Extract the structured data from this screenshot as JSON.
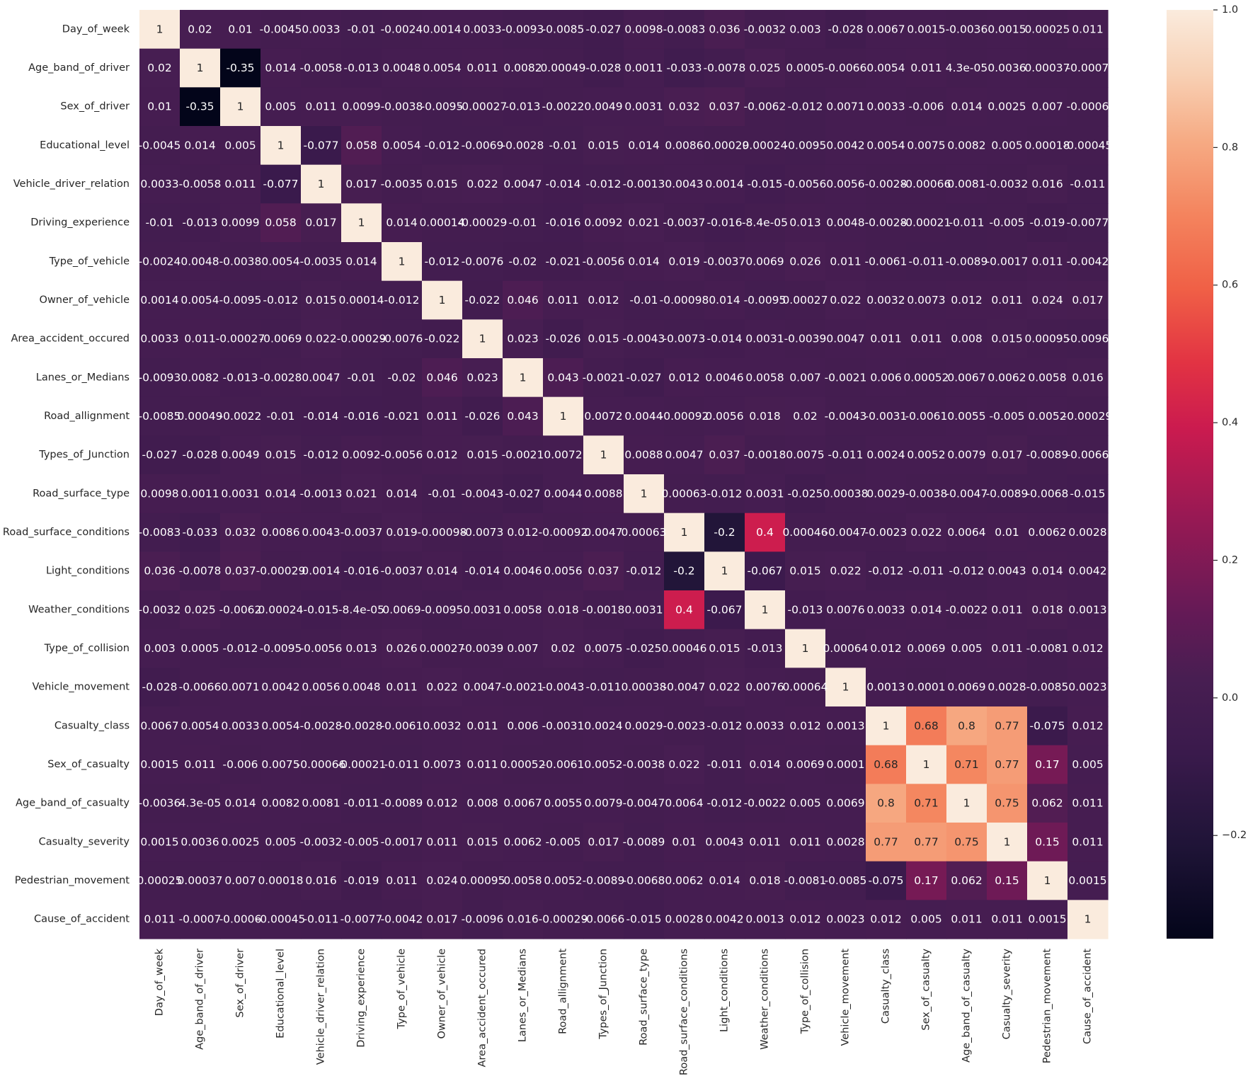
{
  "chart_data": {
    "type": "heatmap",
    "title": "",
    "xlabel": "",
    "ylabel": "",
    "labels": [
      "Day_of_week",
      "Age_band_of_driver",
      "Sex_of_driver",
      "Educational_level",
      "Vehicle_driver_relation",
      "Driving_experience",
      "Type_of_vehicle",
      "Owner_of_vehicle",
      "Area_accident_occured",
      "Lanes_or_Medians",
      "Road_allignment",
      "Types_of_Junction",
      "Road_surface_type",
      "Road_surface_conditions",
      "Light_conditions",
      "Weather_conditions",
      "Type_of_collision",
      "Vehicle_movement",
      "Casualty_class",
      "Sex_of_casualty",
      "Age_band_of_casualty",
      "Casualty_severity",
      "Pedestrian_movement",
      "Cause_of_accident"
    ],
    "annotations": [
      [
        "1",
        "0.02",
        "0.01",
        "-0.0045",
        "0.0033",
        "-0.01",
        "-0.0024",
        "0.0014",
        "0.0033",
        "-0.0093",
        "-0.0085",
        "-0.027",
        "0.0098",
        "-0.0083",
        "0.036",
        "-0.0032",
        "0.003",
        "-0.028",
        "0.0067",
        "0.0015",
        "-0.0036",
        "0.0015",
        "0.00025",
        "0.011"
      ],
      [
        "0.02",
        "1",
        "-0.35",
        "0.014",
        "-0.0058",
        "-0.013",
        "0.0048",
        "0.0054",
        "0.011",
        "0.0082",
        "0.00049",
        "-0.028",
        "0.0011",
        "-0.033",
        "-0.0078",
        "0.025",
        "0.0005",
        "-0.0066",
        "0.0054",
        "0.011",
        "4.3e-05",
        "0.0036",
        "0.00037",
        "-0.0007"
      ],
      [
        "0.01",
        "-0.35",
        "1",
        "0.005",
        "0.011",
        "0.0099",
        "-0.0038",
        "-0.0095",
        "-0.00027",
        "-0.013",
        "-0.0022",
        "0.0049",
        "0.0031",
        "0.032",
        "0.037",
        "-0.0062",
        "-0.012",
        "0.0071",
        "0.0033",
        "-0.006",
        "0.014",
        "0.0025",
        "0.007",
        "-0.0006"
      ],
      [
        "-0.0045",
        "0.014",
        "0.005",
        "1",
        "-0.077",
        "0.058",
        "0.0054",
        "-0.012",
        "-0.0069",
        "-0.0028",
        "-0.01",
        "0.015",
        "0.014",
        "0.0086",
        "-0.00029",
        "0.00024",
        "-0.0095",
        "0.0042",
        "0.0054",
        "0.0075",
        "0.0082",
        "0.005",
        "0.00018",
        "-0.00045"
      ],
      [
        "0.0033",
        "-0.0058",
        "0.011",
        "-0.077",
        "1",
        "0.017",
        "-0.0035",
        "0.015",
        "0.022",
        "0.0047",
        "-0.014",
        "-0.012",
        "-0.0013",
        "0.0043",
        "0.0014",
        "-0.015",
        "-0.0056",
        "0.0056",
        "-0.0028",
        "-0.00066",
        "0.0081",
        "-0.0032",
        "0.016",
        "-0.011"
      ],
      [
        "-0.01",
        "-0.013",
        "0.0099",
        "0.058",
        "0.017",
        "1",
        "0.014",
        "0.00014",
        "-0.00029",
        "-0.01",
        "-0.016",
        "0.0092",
        "0.021",
        "-0.0037",
        "-0.016",
        "-8.4e-05",
        "0.013",
        "0.0048",
        "-0.0028",
        "-0.00021",
        "-0.011",
        "-0.005",
        "-0.019",
        "-0.0077"
      ],
      [
        "-0.0024",
        "0.0048",
        "-0.0038",
        "0.0054",
        "-0.0035",
        "0.014",
        "1",
        "-0.012",
        "-0.0076",
        "-0.02",
        "-0.021",
        "-0.0056",
        "0.014",
        "0.019",
        "-0.0037",
        "0.0069",
        "0.026",
        "0.011",
        "-0.0061",
        "-0.011",
        "-0.0089",
        "-0.0017",
        "0.011",
        "-0.0042"
      ],
      [
        "0.0014",
        "0.0054",
        "-0.0095",
        "-0.012",
        "0.015",
        "0.00014",
        "-0.012",
        "1",
        "-0.022",
        "0.046",
        "0.011",
        "0.012",
        "-0.01",
        "-0.00098",
        "0.014",
        "-0.0095",
        "0.00027",
        "0.022",
        "0.0032",
        "0.0073",
        "0.012",
        "0.011",
        "0.024",
        "0.017"
      ],
      [
        "0.0033",
        "0.011",
        "-0.00027",
        "-0.0069",
        "0.022",
        "-0.00029",
        "-0.0076",
        "-0.022",
        "1",
        "0.023",
        "-0.026",
        "0.015",
        "-0.0043",
        "-0.0073",
        "-0.014",
        "0.0031",
        "-0.0039",
        "0.0047",
        "0.011",
        "0.011",
        "0.008",
        "0.015",
        "0.00095",
        "-0.0096"
      ],
      [
        "-0.0093",
        "0.0082",
        "-0.013",
        "-0.0028",
        "0.0047",
        "-0.01",
        "-0.02",
        "0.046",
        "0.023",
        "1",
        "0.043",
        "-0.0021",
        "-0.027",
        "0.012",
        "0.0046",
        "0.0058",
        "0.007",
        "-0.0021",
        "0.006",
        "0.00052",
        "0.0067",
        "0.0062",
        "0.0058",
        "0.016"
      ],
      [
        "-0.0085",
        "0.00049",
        "-0.0022",
        "-0.01",
        "-0.014",
        "-0.016",
        "-0.021",
        "0.011",
        "-0.026",
        "0.043",
        "1",
        "0.0072",
        "0.0044",
        "-0.00092",
        "0.0056",
        "0.018",
        "0.02",
        "-0.0043",
        "-0.0031",
        "-0.0061",
        "0.0055",
        "-0.005",
        "0.0052",
        "-0.00029"
      ],
      [
        "-0.027",
        "-0.028",
        "0.0049",
        "0.015",
        "-0.012",
        "0.0092",
        "-0.0056",
        "0.012",
        "0.015",
        "-0.0021",
        "0.0072",
        "1",
        "0.0088",
        "0.0047",
        "0.037",
        "-0.0018",
        "0.0075",
        "-0.011",
        "0.0024",
        "0.0052",
        "0.0079",
        "0.017",
        "-0.0089",
        "-0.0066"
      ],
      [
        "0.0098",
        "0.0011",
        "0.0031",
        "0.014",
        "-0.0013",
        "0.021",
        "0.014",
        "-0.01",
        "-0.0043",
        "-0.027",
        "0.0044",
        "0.0088",
        "1",
        "0.00063",
        "-0.012",
        "0.0031",
        "-0.025",
        "0.00038",
        "0.0029",
        "-0.0038",
        "-0.0047",
        "-0.0089",
        "-0.0068",
        "-0.015"
      ],
      [
        "-0.0083",
        "-0.033",
        "0.032",
        "0.0086",
        "0.0043",
        "-0.0037",
        "0.019",
        "-0.00098",
        "-0.0073",
        "0.012",
        "-0.00092",
        "0.0047",
        "0.00063",
        "1",
        "-0.2",
        "0.4",
        "0.00046",
        "-0.0047",
        "-0.0023",
        "0.022",
        "0.0064",
        "0.01",
        "0.0062",
        "0.0028"
      ],
      [
        "0.036",
        "-0.0078",
        "0.037",
        "-0.00029",
        "0.0014",
        "-0.016",
        "-0.0037",
        "0.014",
        "-0.014",
        "0.0046",
        "0.0056",
        "0.037",
        "-0.012",
        "-0.2",
        "1",
        "-0.067",
        "0.015",
        "0.022",
        "-0.012",
        "-0.011",
        "-0.012",
        "0.0043",
        "0.014",
        "0.0042"
      ],
      [
        "-0.0032",
        "0.025",
        "-0.0062",
        "0.00024",
        "-0.015",
        "-8.4e-05",
        "0.0069",
        "-0.0095",
        "0.0031",
        "0.0058",
        "0.018",
        "-0.0018",
        "0.0031",
        "0.4",
        "-0.067",
        "1",
        "-0.013",
        "0.0076",
        "0.0033",
        "0.014",
        "-0.0022",
        "0.011",
        "0.018",
        "0.0013"
      ],
      [
        "0.003",
        "0.0005",
        "-0.012",
        "-0.0095",
        "-0.0056",
        "0.013",
        "0.026",
        "0.00027",
        "-0.0039",
        "0.007",
        "0.02",
        "0.0075",
        "-0.025",
        "0.00046",
        "0.015",
        "-0.013",
        "1",
        "0.00064",
        "0.012",
        "0.0069",
        "0.005",
        "0.011",
        "-0.0081",
        "0.012"
      ],
      [
        "-0.028",
        "-0.0066",
        "0.0071",
        "0.0042",
        "0.0056",
        "0.0048",
        "0.011",
        "0.022",
        "0.0047",
        "-0.0021",
        "-0.0043",
        "-0.011",
        "0.00038",
        "-0.0047",
        "0.022",
        "0.0076",
        "0.00064",
        "1",
        "0.0013",
        "0.0001",
        "0.0069",
        "0.0028",
        "-0.0085",
        "0.0023"
      ],
      [
        "0.0067",
        "0.0054",
        "0.0033",
        "0.0054",
        "-0.0028",
        "-0.0028",
        "-0.0061",
        "0.0032",
        "0.011",
        "0.006",
        "-0.0031",
        "0.0024",
        "0.0029",
        "-0.0023",
        "-0.012",
        "0.0033",
        "0.012",
        "0.0013",
        "1",
        "0.68",
        "0.8",
        "0.77",
        "-0.075",
        "0.012"
      ],
      [
        "0.0015",
        "0.011",
        "-0.006",
        "0.0075",
        "-0.00066",
        "-0.00021",
        "-0.011",
        "0.0073",
        "0.011",
        "0.00052",
        "-0.0061",
        "0.0052",
        "-0.0038",
        "0.022",
        "-0.011",
        "0.014",
        "0.0069",
        "0.0001",
        "0.68",
        "1",
        "0.71",
        "0.77",
        "0.17",
        "0.005"
      ],
      [
        "-0.0036",
        "4.3e-05",
        "0.014",
        "0.0082",
        "0.0081",
        "-0.011",
        "-0.0089",
        "0.012",
        "0.008",
        "0.0067",
        "0.0055",
        "0.0079",
        "-0.0047",
        "0.0064",
        "-0.012",
        "-0.0022",
        "0.005",
        "0.0069",
        "0.8",
        "0.71",
        "1",
        "0.75",
        "0.062",
        "0.011"
      ],
      [
        "0.0015",
        "0.0036",
        "0.0025",
        "0.005",
        "-0.0032",
        "-0.005",
        "-0.0017",
        "0.011",
        "0.015",
        "0.0062",
        "-0.005",
        "0.017",
        "-0.0089",
        "0.01",
        "0.0043",
        "0.011",
        "0.011",
        "0.0028",
        "0.77",
        "0.77",
        "0.75",
        "1",
        "0.15",
        "0.011"
      ],
      [
        "0.00025",
        "0.00037",
        "0.007",
        "0.00018",
        "0.016",
        "-0.019",
        "0.011",
        "0.024",
        "0.00095",
        "0.0058",
        "0.0052",
        "-0.0089",
        "-0.0068",
        "0.0062",
        "0.014",
        "0.018",
        "-0.0081",
        "-0.0085",
        "-0.075",
        "0.17",
        "0.062",
        "0.15",
        "1",
        "0.0015"
      ],
      [
        "0.011",
        "-0.0007",
        "-0.0006",
        "-0.00045",
        "-0.011",
        "-0.0077",
        "-0.0042",
        "0.017",
        "-0.0096",
        "0.016",
        "-0.00029",
        "-0.0066",
        "-0.015",
        "0.0028",
        "0.0042",
        "0.0013",
        "0.012",
        "0.0023",
        "0.012",
        "0.005",
        "0.011",
        "0.011",
        "0.0015",
        "1"
      ]
    ],
    "colorbar": {
      "min": -0.35,
      "max": 1.0,
      "ticks": [
        "-0.2",
        "0.0",
        "0.2",
        "0.4",
        "0.6",
        "0.8",
        "1.0"
      ],
      "colormap": "rocket"
    },
    "grid": false,
    "legend": "colorbar-right"
  }
}
